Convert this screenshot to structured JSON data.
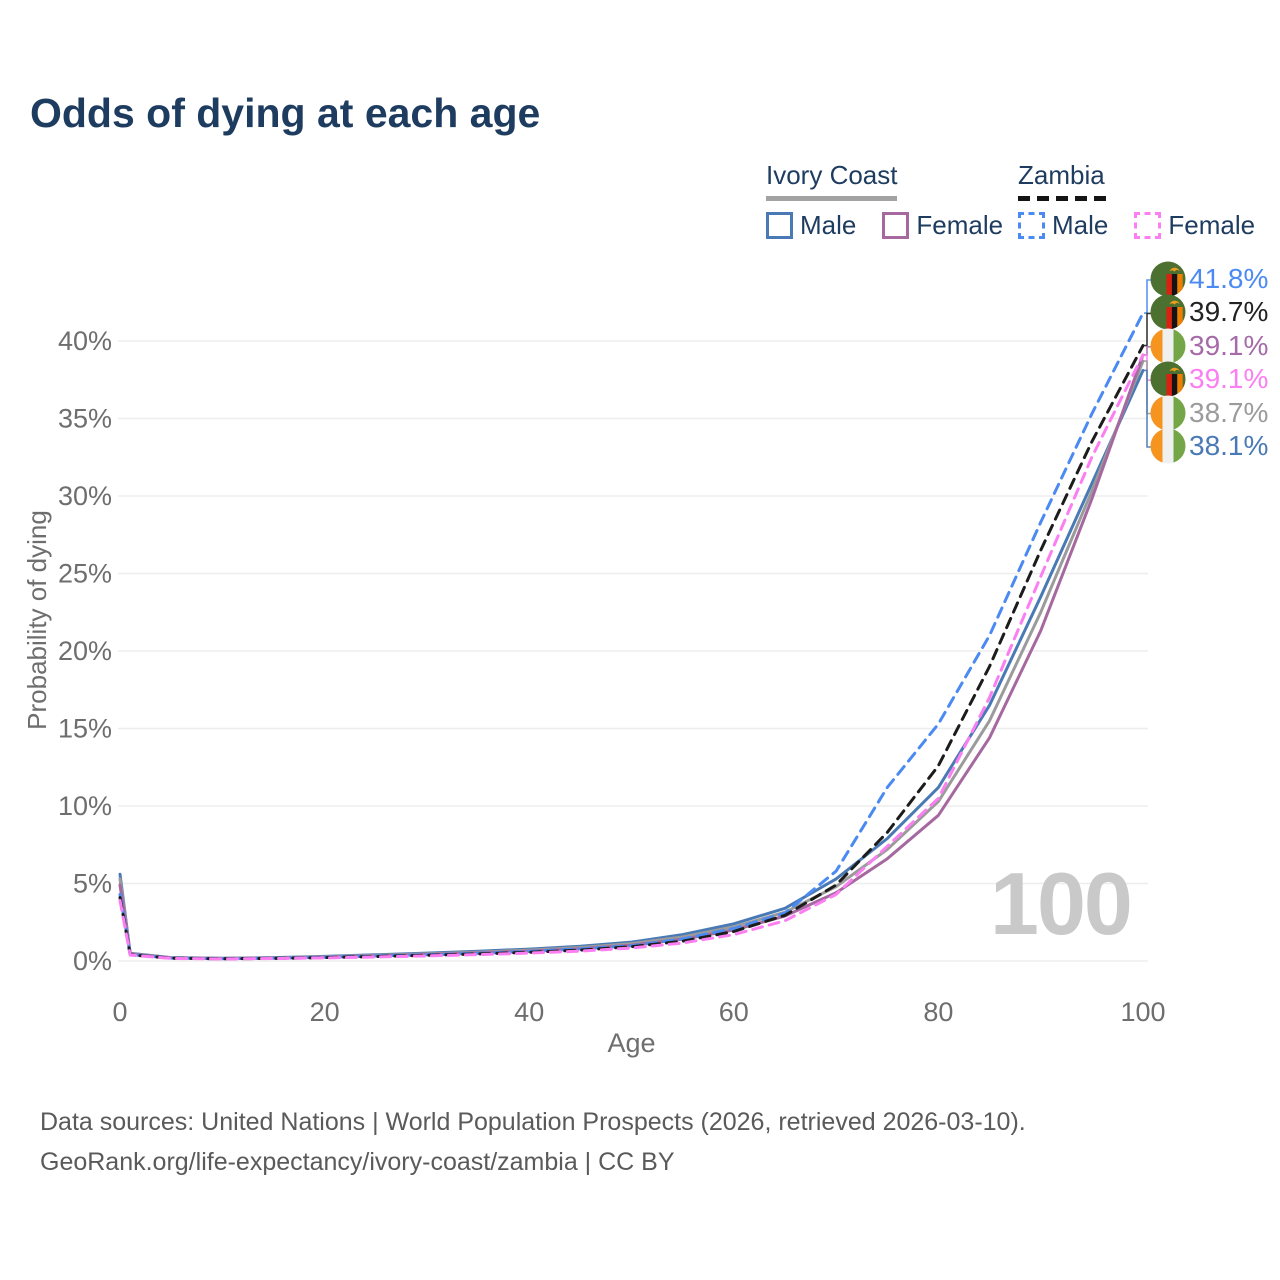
{
  "legend": {
    "groups": [
      {
        "label": "Ivory Coast",
        "style": "solid",
        "items": [
          {
            "label": "Male",
            "color": "#4a7ab5"
          },
          {
            "label": "Female",
            "color": "#a5699f"
          }
        ]
      },
      {
        "label": "Zambia",
        "style": "dashed",
        "items": [
          {
            "label": "Male",
            "color": "#4a8af2"
          },
          {
            "label": "Female",
            "color": "#fb7ef2"
          }
        ]
      }
    ]
  },
  "footer": {
    "line1": "Data sources: United Nations | World Population Prospects (2026, retrieved 2026-03-10).",
    "line2": "GeoRank.org/life-expectancy/ivory-coast/zambia | CC BY"
  },
  "chart_data": {
    "type": "line",
    "title": "Odds of dying at each age",
    "xlabel": "Age",
    "ylabel": "Probability of dying",
    "watermark": "100",
    "grid": true,
    "legend_position": "top-right",
    "xlim": [
      0,
      100
    ],
    "ylim": [
      0,
      43
    ],
    "x_ticks": [
      0,
      20,
      40,
      60,
      80,
      100
    ],
    "y_tick_values": [
      0,
      5,
      10,
      15,
      20,
      25,
      30,
      35,
      40
    ],
    "y_ticks": [
      "0%",
      "5%",
      "10%",
      "15%",
      "20%",
      "25%",
      "30%",
      "35%",
      "40%"
    ],
    "x": [
      0,
      1,
      5,
      10,
      15,
      20,
      25,
      30,
      35,
      40,
      45,
      50,
      55,
      60,
      65,
      70,
      75,
      80,
      85,
      90,
      95,
      100
    ],
    "series": [
      {
        "name": "Ivory Coast Male",
        "country": "Ivory Coast",
        "sex": "Male",
        "style": "solid",
        "color": "#4a7ab5",
        "end_value": 38.1,
        "values": [
          5.6,
          0.5,
          0.22,
          0.18,
          0.22,
          0.3,
          0.4,
          0.51,
          0.63,
          0.77,
          0.95,
          1.22,
          1.7,
          2.4,
          3.4,
          5.3,
          7.9,
          11.2,
          16.5,
          23.5,
          30.8,
          38.1
        ]
      },
      {
        "name": "Ivory Coast Both sexes",
        "country": "Ivory Coast",
        "sex": "Both",
        "style": "solid",
        "color": "#9b9b9b",
        "end_value": 38.7,
        "values": [
          5.3,
          0.48,
          0.21,
          0.17,
          0.2,
          0.27,
          0.36,
          0.46,
          0.57,
          0.7,
          0.87,
          1.12,
          1.55,
          2.2,
          3.15,
          4.8,
          7.2,
          10.3,
          15.5,
          22.5,
          30.3,
          38.7
        ]
      },
      {
        "name": "Ivory Coast Female",
        "country": "Ivory Coast",
        "sex": "Female",
        "style": "solid",
        "color": "#a5699f",
        "end_value": 39.1,
        "values": [
          4.9,
          0.45,
          0.2,
          0.16,
          0.19,
          0.25,
          0.33,
          0.42,
          0.52,
          0.64,
          0.79,
          1.02,
          1.4,
          2.0,
          2.9,
          4.4,
          6.6,
          9.4,
          14.4,
          21.3,
          29.8,
          39.1
        ]
      },
      {
        "name": "Zambia Male",
        "country": "Zambia",
        "sex": "Male",
        "style": "dashed",
        "color": "#4a8af2",
        "end_value": 41.8,
        "values": [
          4.3,
          0.42,
          0.19,
          0.15,
          0.18,
          0.24,
          0.32,
          0.4,
          0.5,
          0.62,
          0.78,
          0.98,
          1.42,
          2.1,
          3.1,
          5.8,
          11.2,
          15.3,
          21.0,
          28.3,
          35.3,
          41.8
        ]
      },
      {
        "name": "Zambia Both sexes",
        "country": "Zambia",
        "sex": "Both",
        "style": "dashed",
        "color": "#1c1c1c",
        "end_value": 39.7,
        "values": [
          4.1,
          0.4,
          0.18,
          0.14,
          0.17,
          0.22,
          0.29,
          0.37,
          0.46,
          0.56,
          0.7,
          0.92,
          1.28,
          1.9,
          2.95,
          4.9,
          8.3,
          12.6,
          19.0,
          26.5,
          33.5,
          39.7
        ]
      },
      {
        "name": "Zambia Female",
        "country": "Zambia",
        "sex": "Female",
        "style": "dashed",
        "color": "#fb7ef2",
        "end_value": 39.1,
        "values": [
          3.9,
          0.38,
          0.17,
          0.13,
          0.16,
          0.2,
          0.26,
          0.33,
          0.41,
          0.51,
          0.64,
          0.84,
          1.16,
          1.7,
          2.6,
          4.3,
          7.4,
          10.5,
          17.0,
          24.8,
          32.5,
          39.1
        ]
      }
    ],
    "end_labels": [
      {
        "series": "Zambia Male",
        "flag": "zambia",
        "value": "41.8%",
        "color": "#4a8af2"
      },
      {
        "series": "Zambia Both sexes",
        "flag": "zambia",
        "value": "39.7%",
        "color": "#222222"
      },
      {
        "series": "Ivory Coast Female",
        "flag": "ivory-coast",
        "value": "39.1%",
        "color": "#a66aa8"
      },
      {
        "series": "Zambia Female",
        "flag": "zambia",
        "value": "39.1%",
        "color": "#fb7ef2"
      },
      {
        "series": "Ivory Coast Both sexes",
        "flag": "ivory-coast",
        "value": "38.7%",
        "color": "#9b9b9b"
      },
      {
        "series": "Ivory Coast Male",
        "flag": "ivory-coast",
        "value": "38.1%",
        "color": "#4a7ab5"
      }
    ]
  }
}
